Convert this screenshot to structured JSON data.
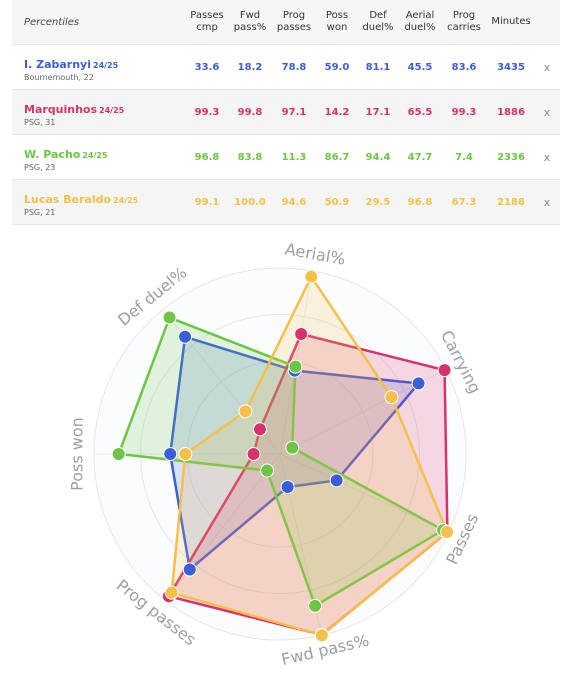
{
  "table": {
    "title": "Percentiles",
    "columns": [
      "Passes cmp",
      "Fwd pass%",
      "Prog passes",
      "Poss won",
      "Def duel%",
      "Aerial duel%",
      "Prog carries",
      "Minutes"
    ],
    "column_lines": [
      [
        "Passes",
        "cmp"
      ],
      [
        "Fwd",
        "pass%"
      ],
      [
        "Prog",
        "passes"
      ],
      [
        "Poss",
        "won"
      ],
      [
        "Def",
        "duel%"
      ],
      [
        "Aerial",
        "duel%"
      ],
      [
        "Prog",
        "carries"
      ],
      [
        "Minutes",
        ""
      ]
    ],
    "remove_label": "x",
    "rows": [
      {
        "name": "I. Zabarnyi",
        "season": "24/25",
        "sub": "Bournemouth, 22",
        "color": "#3b5fd9",
        "bg": "#ffffff",
        "values": [
          "33.6",
          "18.2",
          "78.8",
          "59.0",
          "81.1",
          "45.5",
          "83.6",
          "3435"
        ]
      },
      {
        "name": "Marquinhos",
        "season": "24/25",
        "sub": "PSG, 31",
        "color": "#d6336c",
        "bg": "#f5f5f5",
        "values": [
          "99.3",
          "99.8",
          "97.1",
          "14.2",
          "17.1",
          "65.5",
          "99.3",
          "1886"
        ]
      },
      {
        "name": "W. Pacho",
        "season": "24/25",
        "sub": "PSG, 23",
        "color": "#6cc644",
        "bg": "#ffffff",
        "values": [
          "96.8",
          "83.8",
          "11.3",
          "86.7",
          "94.4",
          "47.7",
          "7.4",
          "2336"
        ]
      },
      {
        "name": "Lucas Beraldo",
        "season": "24/25",
        "sub": "PSG, 21",
        "color": "#f5c04a",
        "bg": "#f5f5f5",
        "values": [
          "99.1",
          "100.0",
          "94.6",
          "50.9",
          "29.5",
          "96.8",
          "67.3",
          "2188"
        ]
      }
    ]
  },
  "chart_data": {
    "type": "radar",
    "axes": [
      "Aerial%",
      "Carrying",
      "Passes",
      "Fwd pass%",
      "Prog passes",
      "Poss won",
      "Def duel%"
    ],
    "range": [
      0,
      100
    ],
    "series": [
      {
        "name": "I. Zabarnyi",
        "color": "#3b5fd9",
        "values": [
          45.5,
          83.6,
          33.6,
          18.2,
          78.8,
          59.0,
          81.1
        ]
      },
      {
        "name": "Marquinhos",
        "color": "#d6336c",
        "values": [
          65.5,
          99.3,
          99.3,
          99.8,
          97.1,
          14.2,
          17.1
        ]
      },
      {
        "name": "W. Pacho",
        "color": "#6cc644",
        "values": [
          47.7,
          7.4,
          96.8,
          83.8,
          11.3,
          86.7,
          94.4
        ]
      },
      {
        "name": "Lucas Beraldo",
        "color": "#f5c04a",
        "values": [
          96.8,
          67.3,
          99.1,
          100.0,
          94.6,
          50.9,
          29.5
        ]
      }
    ]
  }
}
